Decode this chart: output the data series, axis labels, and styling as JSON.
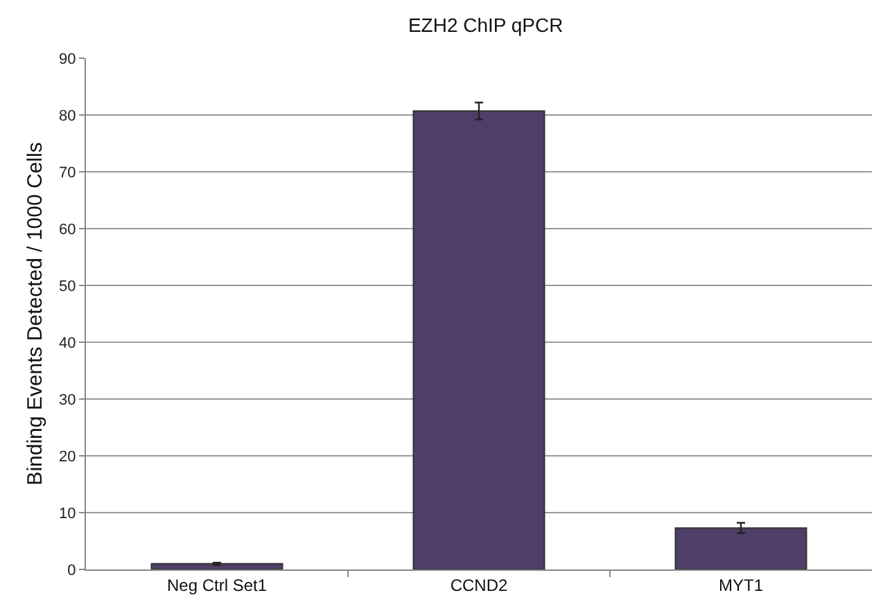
{
  "chart_data": {
    "type": "bar",
    "title": "EZH2 ChIP qPCR",
    "ylabel": "Binding Events Detected / 1000 Cells",
    "categories": [
      "Neg Ctrl Set1",
      "CCND2",
      "MYT1"
    ],
    "values": [
      1.0,
      80.7,
      7.3
    ],
    "errors": [
      0.2,
      1.5,
      0.9
    ],
    "color": "#4f3f68",
    "ylim": [
      0,
      90
    ],
    "yticks": [
      0,
      10,
      20,
      30,
      40,
      50,
      60,
      70,
      80,
      90
    ],
    "grid": "y"
  }
}
